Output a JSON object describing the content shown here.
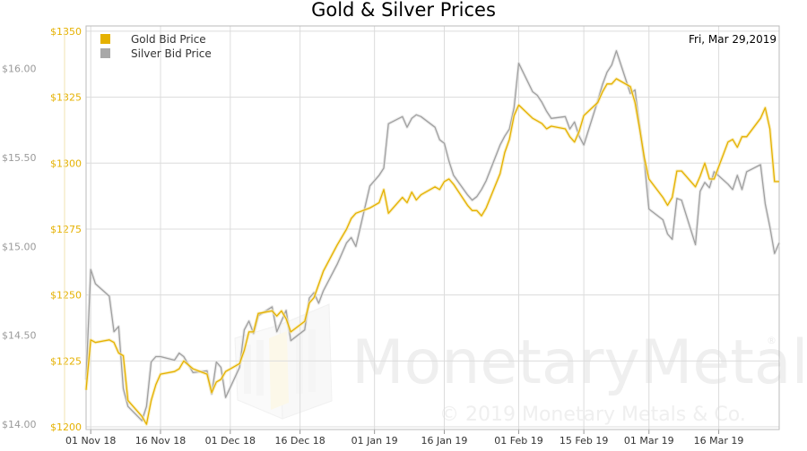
{
  "chart_data": {
    "type": "line",
    "title": "Gold & Silver Prices",
    "date_label": "Fri, Mar 29,2019",
    "legend": {
      "placement": "top-left"
    },
    "grid": true,
    "x_tick_labels": [
      "01 Nov 18",
      "16 Nov 18",
      "01 Dec 18",
      "16 Dec 18",
      "01 Jan 19",
      "16 Jan 19",
      "01 Feb 19",
      "15 Feb 19",
      "01 Mar 19",
      "16 Mar 19"
    ],
    "x_range": [
      "2018-10-31",
      "2019-03-29"
    ],
    "y_left": {
      "ticks": [
        1200,
        1225,
        1250,
        1275,
        1300,
        1325,
        1350
      ],
      "tick_labels": [
        "$1200",
        "$1225",
        "$1250",
        "$1275",
        "$1300",
        "$1325",
        "$1350"
      ],
      "range": [
        1199,
        1352
      ],
      "color": "#e5b100"
    },
    "y_right": {
      "ticks": [
        14.0,
        14.5,
        15.0,
        15.5,
        16.0
      ],
      "tick_labels": [
        "$14.00",
        "$14.50",
        "$15.00",
        "$15.50",
        "$16.00"
      ],
      "range": [
        13.97,
        16.24
      ],
      "color": "#9a9a9a"
    },
    "series": [
      {
        "name": "Gold Bid Price",
        "axis": "left",
        "color": "#e5b100",
        "x": [
          "2018-10-31",
          "2018-11-01",
          "2018-11-02",
          "2018-11-05",
          "2018-11-06",
          "2018-11-07",
          "2018-11-08",
          "2018-11-09",
          "2018-11-12",
          "2018-11-13",
          "2018-11-14",
          "2018-11-15",
          "2018-11-16",
          "2018-11-19",
          "2018-11-20",
          "2018-11-21",
          "2018-11-23",
          "2018-11-26",
          "2018-11-27",
          "2018-11-28",
          "2018-11-29",
          "2018-11-30",
          "2018-12-03",
          "2018-12-04",
          "2018-12-05",
          "2018-12-06",
          "2018-12-07",
          "2018-12-10",
          "2018-12-11",
          "2018-12-12",
          "2018-12-13",
          "2018-12-14",
          "2018-12-17",
          "2018-12-18",
          "2018-12-19",
          "2018-12-20",
          "2018-12-21",
          "2018-12-24",
          "2018-12-26",
          "2018-12-27",
          "2018-12-28",
          "2018-12-31",
          "2019-01-02",
          "2019-01-03",
          "2019-01-04",
          "2019-01-07",
          "2019-01-08",
          "2019-01-09",
          "2019-01-10",
          "2019-01-11",
          "2019-01-14",
          "2019-01-15",
          "2019-01-16",
          "2019-01-17",
          "2019-01-18",
          "2019-01-21",
          "2019-01-22",
          "2019-01-23",
          "2019-01-24",
          "2019-01-25",
          "2019-01-28",
          "2019-01-29",
          "2019-01-30",
          "2019-01-31",
          "2019-02-01",
          "2019-02-04",
          "2019-02-05",
          "2019-02-06",
          "2019-02-07",
          "2019-02-08",
          "2019-02-11",
          "2019-02-12",
          "2019-02-13",
          "2019-02-14",
          "2019-02-15",
          "2019-02-18",
          "2019-02-19",
          "2019-02-20",
          "2019-02-21",
          "2019-02-22",
          "2019-02-25",
          "2019-02-26",
          "2019-02-27",
          "2019-02-28",
          "2019-03-01",
          "2019-03-04",
          "2019-03-05",
          "2019-03-06",
          "2019-03-07",
          "2019-03-08",
          "2019-03-11",
          "2019-03-12",
          "2019-03-13",
          "2019-03-14",
          "2019-03-15",
          "2019-03-18",
          "2019-03-19",
          "2019-03-20",
          "2019-03-21",
          "2019-03-22",
          "2019-03-25",
          "2019-03-26",
          "2019-03-27",
          "2019-03-28",
          "2019-03-29"
        ],
        "values": [
          1214,
          1233,
          1232,
          1233,
          1232,
          1228,
          1227,
          1210,
          1204,
          1201,
          1210,
          1216,
          1220,
          1221,
          1222,
          1225,
          1222,
          1220,
          1213,
          1217,
          1218,
          1221,
          1224,
          1229,
          1236,
          1236,
          1243,
          1244,
          1242,
          1244,
          1241,
          1236,
          1240,
          1247,
          1249,
          1254,
          1259,
          1269,
          1275,
          1279,
          1281,
          1283,
          1285,
          1290,
          1281,
          1287,
          1285,
          1289,
          1286,
          1288,
          1291,
          1290,
          1293,
          1294,
          1292,
          1284,
          1282,
          1282,
          1280,
          1283,
          1296,
          1304,
          1309,
          1318,
          1322,
          1317,
          1316,
          1315,
          1313,
          1314,
          1313,
          1310,
          1308,
          1312,
          1318,
          1323,
          1327,
          1330,
          1330,
          1332,
          1329,
          1323,
          1313,
          1302,
          1294,
          1287,
          1284,
          1287,
          1297,
          1297,
          1291,
          1295,
          1300,
          1294,
          1294,
          1308,
          1309,
          1306,
          1310,
          1310,
          1317,
          1321,
          1313,
          1293,
          1293
        ]
      },
      {
        "name": "Silver Bid Price",
        "axis": "right",
        "color": "#a0a0a0",
        "x": [
          "2018-10-31",
          "2018-11-01",
          "2018-11-02",
          "2018-11-05",
          "2018-11-06",
          "2018-11-07",
          "2018-11-08",
          "2018-11-09",
          "2018-11-12",
          "2018-11-13",
          "2018-11-14",
          "2018-11-15",
          "2018-11-16",
          "2018-11-19",
          "2018-11-20",
          "2018-11-21",
          "2018-11-23",
          "2018-11-26",
          "2018-11-27",
          "2018-11-28",
          "2018-11-29",
          "2018-11-30",
          "2018-12-03",
          "2018-12-04",
          "2018-12-05",
          "2018-12-06",
          "2018-12-07",
          "2018-12-10",
          "2018-12-11",
          "2018-12-12",
          "2018-12-13",
          "2018-12-14",
          "2018-12-17",
          "2018-12-18",
          "2018-12-19",
          "2018-12-20",
          "2018-12-21",
          "2018-12-24",
          "2018-12-26",
          "2018-12-27",
          "2018-12-28",
          "2018-12-31",
          "2019-01-02",
          "2019-01-03",
          "2019-01-04",
          "2019-01-07",
          "2019-01-08",
          "2019-01-09",
          "2019-01-10",
          "2019-01-11",
          "2019-01-14",
          "2019-01-15",
          "2019-01-16",
          "2019-01-17",
          "2019-01-18",
          "2019-01-21",
          "2019-01-22",
          "2019-01-23",
          "2019-01-24",
          "2019-01-25",
          "2019-01-28",
          "2019-01-29",
          "2019-01-30",
          "2019-01-31",
          "2019-02-01",
          "2019-02-04",
          "2019-02-05",
          "2019-02-06",
          "2019-02-07",
          "2019-02-08",
          "2019-02-11",
          "2019-02-12",
          "2019-02-13",
          "2019-02-14",
          "2019-02-15",
          "2019-02-18",
          "2019-02-19",
          "2019-02-20",
          "2019-02-21",
          "2019-02-22",
          "2019-02-25",
          "2019-02-26",
          "2019-02-27",
          "2019-02-28",
          "2019-03-01",
          "2019-03-04",
          "2019-03-05",
          "2019-03-06",
          "2019-03-07",
          "2019-03-08",
          "2019-03-11",
          "2019-03-12",
          "2019-03-13",
          "2019-03-14",
          "2019-03-15",
          "2019-03-18",
          "2019-03-19",
          "2019-03-20",
          "2019-03-21",
          "2019-03-22",
          "2019-03-25",
          "2019-03-26",
          "2019-03-27",
          "2019-03-28",
          "2019-03-29"
        ],
        "values": [
          14.25,
          14.87,
          14.79,
          14.72,
          14.52,
          14.55,
          14.2,
          14.1,
          14.02,
          14.1,
          14.35,
          14.38,
          14.38,
          14.36,
          14.4,
          14.38,
          14.29,
          14.3,
          14.17,
          14.35,
          14.32,
          14.15,
          14.32,
          14.53,
          14.58,
          14.51,
          14.61,
          14.66,
          14.52,
          14.58,
          14.64,
          14.47,
          14.53,
          14.71,
          14.74,
          14.68,
          14.75,
          14.9,
          15.02,
          15.05,
          15.0,
          15.34,
          15.4,
          15.44,
          15.69,
          15.73,
          15.67,
          15.72,
          15.74,
          15.73,
          15.67,
          15.6,
          15.58,
          15.48,
          15.4,
          15.29,
          15.26,
          15.28,
          15.32,
          15.37,
          15.57,
          15.62,
          15.66,
          15.78,
          16.03,
          15.87,
          15.85,
          15.81,
          15.76,
          15.72,
          15.73,
          15.66,
          15.7,
          15.62,
          15.57,
          15.82,
          15.91,
          15.98,
          16.02,
          16.1,
          15.86,
          15.88,
          15.67,
          15.48,
          15.21,
          15.15,
          15.07,
          15.04,
          15.27,
          15.26,
          15.01,
          15.31,
          15.36,
          15.33,
          15.42,
          15.35,
          15.32,
          15.4,
          15.32,
          15.42,
          15.46,
          15.24,
          15.11,
          14.96,
          15.02
        ]
      }
    ]
  },
  "watermark": {
    "brand": "MonetaryMetals",
    "brand_part1": "Monetary",
    "brand_part2": "Metals",
    "registered": "®",
    "copyright": "© 2019 Monetary Metals & Co."
  }
}
